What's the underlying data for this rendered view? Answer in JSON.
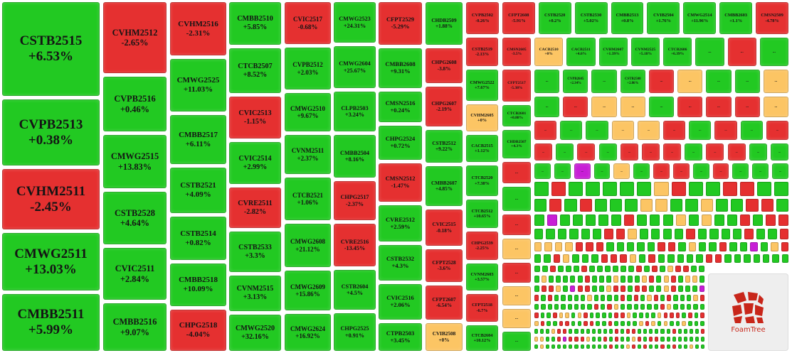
{
  "columns": [
    [
      {
        "label": "CSTB2515",
        "change": "+6.53%",
        "color": "#22c922"
      },
      {
        "label": "CVPB2513",
        "change": "+0.38%",
        "color": "#22c922"
      },
      {
        "label": "CVHM2511",
        "change": "-2.45%",
        "color": "#e53030"
      },
      {
        "label": "CMWG2511",
        "change": "+13.03%",
        "color": "#22c922"
      },
      {
        "label": "CMBB2511",
        "change": "+5.99%",
        "color": "#22c922"
      }
    ],
    [
      {
        "label": "CVHM2512",
        "change": "-2.65%",
        "color": "#e53030"
      },
      {
        "label": "CVPB2516",
        "change": "+0.46%",
        "color": "#22c922"
      },
      {
        "label": "CMWG2515",
        "change": "+13.83%",
        "color": "#22c922"
      },
      {
        "label": "CSTB2528",
        "change": "+4.64%",
        "color": "#22c922"
      },
      {
        "label": "CVIC2511",
        "change": "+2.84%",
        "color": "#22c922"
      },
      {
        "label": "CMBB2516",
        "change": "+9.07%",
        "color": "#22c922"
      }
    ],
    [
      {
        "label": "CVHM2516",
        "change": "-2.31%",
        "color": "#e53030"
      },
      {
        "label": "CMWG2525",
        "change": "+11.03%",
        "color": "#22c922"
      },
      {
        "label": "CMBB2517",
        "change": "+6.11%",
        "color": "#22c922"
      },
      {
        "label": "CSTB2521",
        "change": "+4.09%",
        "color": "#22c922"
      },
      {
        "label": "CSTB2514",
        "change": "+0.82%",
        "color": "#22c922"
      },
      {
        "label": "CMBB2518",
        "change": "+10.09%",
        "color": "#22c922"
      },
      {
        "label": "CHPG2518",
        "change": "-4.04%",
        "color": "#e53030"
      }
    ],
    [
      {
        "label": "CMBB2510",
        "change": "+5.85%",
        "color": "#22c922"
      },
      {
        "label": "CTCB2507",
        "change": "+8.52%",
        "color": "#22c922"
      },
      {
        "label": "CVIC2513",
        "change": "-1.15%",
        "color": "#e53030"
      },
      {
        "label": "CVIC2514",
        "change": "+2.99%",
        "color": "#22c922"
      },
      {
        "label": "CVRE2511",
        "change": "-2.82%",
        "color": "#e53030"
      },
      {
        "label": "CSTB2533",
        "change": "+3.3%",
        "color": "#22c922"
      },
      {
        "label": "CVNM2515",
        "change": "+3.13%",
        "color": "#22c922"
      },
      {
        "label": "CMWG2520",
        "change": "+32.16%",
        "color": "#22c922"
      }
    ],
    [
      {
        "label": "CVIC2517",
        "change": "-0.68%",
        "color": "#e53030"
      },
      {
        "label": "CVPB2512",
        "change": "+2.03%",
        "color": "#22c922"
      },
      {
        "label": "CMWG2510",
        "change": "+9.67%",
        "color": "#22c922"
      },
      {
        "label": "CVNM2511",
        "change": "+2.37%",
        "color": "#22c922"
      },
      {
        "label": "CTCB2521",
        "change": "+1.06%",
        "color": "#22c922"
      },
      {
        "label": "CMWG2608",
        "change": "+21.12%",
        "color": "#22c922"
      },
      {
        "label": "CMWG2609",
        "change": "+15.86%",
        "color": "#22c922"
      },
      {
        "label": "CMWG2624",
        "change": "+16.92%",
        "color": "#22c922"
      }
    ],
    [
      {
        "label": "CMWG2523",
        "change": "+24.31%",
        "color": "#22c922"
      },
      {
        "label": "CMWG2604",
        "change": "+25.67%",
        "color": "#22c922"
      },
      {
        "label": "CLPB2503",
        "change": "+3.24%",
        "color": "#22c922"
      },
      {
        "label": "CMBB2504",
        "change": "+8.16%",
        "color": "#22c922"
      },
      {
        "label": "CHPG2517",
        "change": "-2.37%",
        "color": "#e53030"
      },
      {
        "label": "CVRE2516",
        "change": "-13.45%",
        "color": "#e53030"
      },
      {
        "label": "CSTB2604",
        "change": "+4.5%",
        "color": "#22c922"
      },
      {
        "label": "CHPG2525",
        "change": "+0.91%",
        "color": "#22c922"
      }
    ],
    [
      {
        "label": "CFPT2529",
        "change": "-5.29%",
        "color": "#e53030"
      },
      {
        "label": "CMBB2608",
        "change": "+9.31%",
        "color": "#22c922"
      },
      {
        "label": "CMSN2516",
        "change": "+0.24%",
        "color": "#22c922"
      },
      {
        "label": "CHPG2524",
        "change": "+0.72%",
        "color": "#22c922"
      },
      {
        "label": "CMSN2512",
        "change": "-1.47%",
        "color": "#e53030"
      },
      {
        "label": "CVRE2512",
        "change": "+2.59%",
        "color": "#22c922"
      },
      {
        "label": "CSTB2532",
        "change": "+4.3%",
        "color": "#22c922"
      },
      {
        "label": "CVIC2516",
        "change": "+2.06%",
        "color": "#22c922"
      },
      {
        "label": "CTPB2503",
        "change": "+3.45%",
        "color": "#22c922"
      }
    ],
    [
      {
        "label": "CHDB2509",
        "change": "+1.88%",
        "color": "#22c922"
      },
      {
        "label": "CHPG2608",
        "change": "-3.8%",
        "color": "#e53030"
      },
      {
        "label": "CHPG2607",
        "change": "-2.19%",
        "color": "#e53030"
      },
      {
        "label": "CSTB2512",
        "change": "+9.22%",
        "color": "#22c922"
      },
      {
        "label": "CMBB2607",
        "change": "+4.85%",
        "color": "#22c922"
      },
      {
        "label": "CVIC2515",
        "change": "-0.18%",
        "color": "#e53030"
      },
      {
        "label": "CFPT2528",
        "change": "-3.6%",
        "color": "#e53030"
      },
      {
        "label": "CFPT2607",
        "change": "-6.54%",
        "color": "#e53030"
      },
      {
        "label": "CVIB2508",
        "change": "+0%",
        "color": "#fcc564"
      }
    ],
    [
      {
        "label": "CSTB2519",
        "change": "-2.13%",
        "color": "#e53030"
      },
      {
        "label": "CMWG2522",
        "change": "+7.67%",
        "color": "#22c922"
      },
      {
        "label": "CVHM2605",
        "change": "+0%",
        "color": "#fcc564"
      },
      {
        "label": "CACB2515",
        "change": "+1.12%",
        "color": "#22c922"
      },
      {
        "label": "CTCB2520",
        "change": "+7.38%",
        "color": "#22c922"
      },
      {
        "label": "CTCB2512",
        "change": "+10.65%",
        "color": "#22c922"
      },
      {
        "label": "CHPG2539",
        "change": "-2.25%",
        "color": "#e53030"
      },
      {
        "label": "CVNM2603",
        "change": "+3.57%",
        "color": "#22c922"
      },
      {
        "label": "CFPT2518",
        "change": "-6.7%",
        "color": "#e53030"
      },
      {
        "label": "CTCB2604",
        "change": "+10.12%",
        "color": "#22c922"
      }
    ],
    [
      {
        "label": "CMSN2605",
        "change": "-3.5%",
        "color": "#e53030"
      },
      {
        "label": "CFPT2517",
        "change": "-5.38%",
        "color": "#e53030"
      },
      {
        "label": "CTCB2601",
        "change": "+0.88%",
        "color": "#22c922"
      },
      {
        "label": "CHDB2507",
        "change": "+4.3%",
        "color": "#22c922"
      },
      {
        "label": "...",
        "color": "#e53030"
      },
      {
        "label": "...",
        "color": "#22c922"
      },
      {
        "label": "...",
        "color": "#e53030"
      },
      {
        "label": "...",
        "color": "#fcc564"
      },
      {
        "label": "...",
        "color": "#e53030"
      },
      {
        "label": "...",
        "color": "#fcc564"
      },
      {
        "label": "...",
        "color": "#fcc564"
      },
      {
        "label": "...",
        "color": "#22c922"
      }
    ]
  ],
  "top_row": [
    {
      "label": "CVPB2502",
      "change": "-0.26%",
      "color": "#e53030"
    },
    {
      "label": "CFPT2608",
      "change": "-5.91%",
      "color": "#e53030"
    },
    {
      "label": "CSTB2520",
      "change": "+0.2%",
      "color": "#22c922"
    },
    {
      "label": "CSTB2530",
      "change": "+5.02%",
      "color": "#22c922"
    },
    {
      "label": "CMBB2513",
      "change": "+0.8%",
      "color": "#22c922"
    },
    {
      "label": "CVIB2504",
      "change": "+1.76%",
      "color": "#22c922"
    },
    {
      "label": "CMWG2514",
      "change": "+11.96%",
      "color": "#22c922"
    },
    {
      "label": "CMBB2603",
      "change": "+1.1%",
      "color": "#22c922"
    },
    {
      "label": "CMSN2509",
      "change": "-4.78%",
      "color": "#e53030"
    }
  ],
  "rows": [
    [
      {
        "label": "CACB2510",
        "change": "+0%",
        "color": "#fcc564"
      },
      {
        "label": "CACB2511",
        "change": "+4.6%",
        "color": "#22c922"
      },
      {
        "label": "CVHM2607",
        "change": "+1.39%",
        "color": "#22c922"
      },
      {
        "label": "CVNM2525",
        "change": "+5.18%",
        "color": "#22c922"
      },
      {
        "label": "CTCB2606",
        "change": "+6.39%",
        "color": "#22c922"
      },
      {
        "label": "...",
        "color": "#22c922"
      },
      {
        "label": "...",
        "color": "#e53030"
      },
      {
        "label": "...",
        "color": "#22c922"
      }
    ],
    [
      {
        "label": "...",
        "color": "#22c922"
      },
      {
        "label": "CVPB2605",
        "change": "+2.34%",
        "color": "#22c922"
      },
      {
        "label": "...",
        "color": "#22c922"
      },
      {
        "label": "CSTB2508",
        "change": "+2.86%",
        "color": "#22c922"
      },
      {
        "label": "...",
        "color": "#e53030"
      },
      {
        "label": "...",
        "color": "#fcc564"
      },
      {
        "label": "...",
        "color": "#22c922"
      },
      {
        "label": "...",
        "color": "#22c922"
      },
      {
        "label": "...",
        "color": "#fcc564"
      }
    ],
    [
      {
        "label": "...",
        "color": "#22c922"
      },
      {
        "label": "...",
        "color": "#e53030"
      },
      {
        "label": "...",
        "color": "#fcc564"
      },
      {
        "label": "...",
        "color": "#fcc564"
      },
      {
        "label": "...",
        "color": "#22c922"
      },
      {
        "label": "...",
        "color": "#e53030"
      },
      {
        "label": "...",
        "color": "#e53030"
      },
      {
        "label": "...",
        "color": "#e53030"
      },
      {
        "label": "...",
        "color": "#fcc564"
      }
    ],
    [
      {
        "label": "...",
        "color": "#e53030"
      },
      {
        "label": "...",
        "color": "#22c922"
      },
      {
        "label": "...",
        "color": "#22c922"
      },
      {
        "label": "...",
        "color": "#fcc564"
      },
      {
        "label": "...",
        "color": "#fcc564"
      },
      {
        "label": "...",
        "color": "#e53030"
      },
      {
        "label": "...",
        "color": "#22c922"
      },
      {
        "label": "...",
        "color": "#e53030"
      },
      {
        "label": "...",
        "color": "#22c922"
      },
      {
        "label": "...",
        "color": "#e53030"
      }
    ],
    [
      {
        "label": "...",
        "color": "#e53030"
      },
      {
        "label": "...",
        "color": "#22c922"
      },
      {
        "label": "...",
        "color": "#e53030"
      },
      {
        "label": "...",
        "color": "#22c922"
      },
      {
        "label": "...",
        "color": "#e53030"
      },
      {
        "label": "...",
        "color": "#e53030"
      },
      {
        "label": "...",
        "color": "#e53030"
      },
      {
        "label": "...",
        "color": "#22c922"
      },
      {
        "label": "...",
        "color": "#e53030"
      },
      {
        "label": "...",
        "color": "#e53030"
      },
      {
        "label": "...",
        "color": "#22c922"
      },
      {
        "label": "...",
        "color": "#22c922"
      }
    ],
    [
      {
        "label": "...",
        "color": "#22c922"
      },
      {
        "label": "...",
        "color": "#22c922"
      },
      {
        "label": "...",
        "color": "#c81ed6"
      },
      {
        "label": "...",
        "color": "#22c922"
      },
      {
        "label": "...",
        "color": "#fcc564"
      },
      {
        "label": "...",
        "color": "#22c922"
      },
      {
        "label": "...",
        "color": "#e53030"
      },
      {
        "label": "...",
        "color": "#e53030"
      },
      {
        "label": "...",
        "color": "#22c922"
      },
      {
        "label": "...",
        "color": "#e53030"
      },
      {
        "label": "...",
        "color": "#22c922"
      },
      {
        "label": "...",
        "color": "#22c922"
      },
      {
        "label": "...",
        "color": "#22c922"
      }
    ]
  ],
  "tiny_palette": [
    "#22c922",
    "#e53030",
    "#fcc564",
    "#c81ed6"
  ],
  "logo": "FoamTree"
}
